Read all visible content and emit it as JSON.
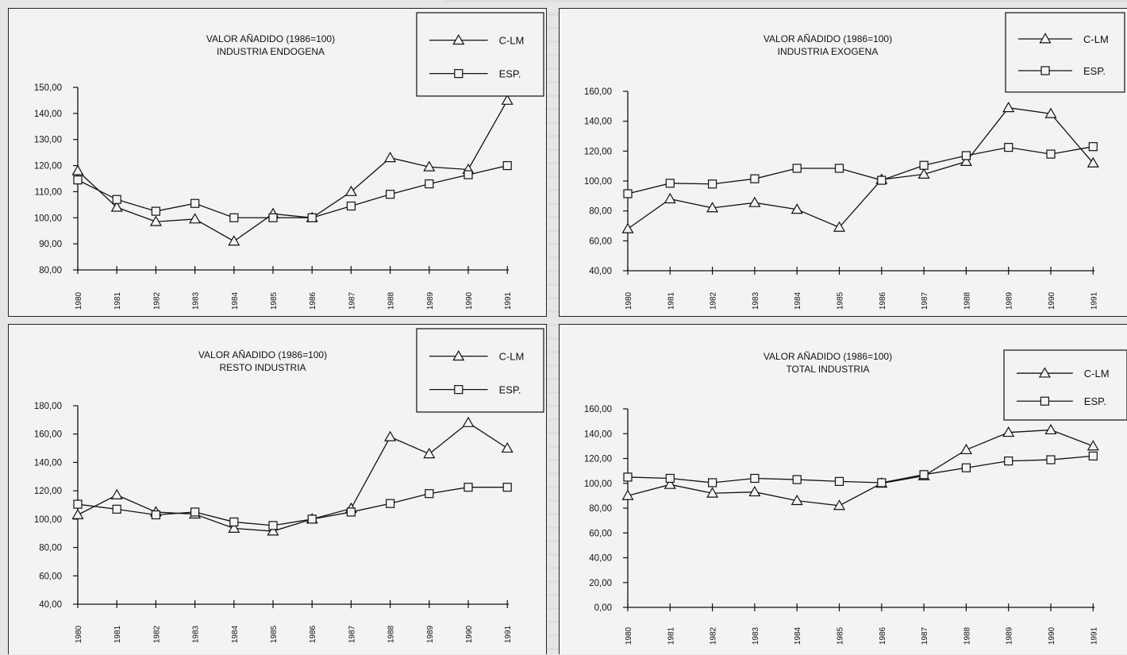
{
  "chart_data": [
    {
      "type": "line",
      "title": "VALOR AÑADIDO (1986=100)",
      "subtitle": "INDUSTRIA ENDOGENA",
      "categories": [
        "1980",
        "1981",
        "1982",
        "1983",
        "1984",
        "1985",
        "1986",
        "1987",
        "1988",
        "1989",
        "1990",
        "1991"
      ],
      "ylim": [
        80,
        150
      ],
      "yticks": [
        "80,00",
        "90,00",
        "100,00",
        "110,00",
        "120,00",
        "130,00",
        "140,00",
        "150,00"
      ],
      "legend_position": "top-right",
      "series": [
        {
          "name": "C-LM",
          "marker": "triangle",
          "values": [
            118,
            104,
            98.5,
            99.5,
            91,
            101.5,
            100,
            110,
            123,
            119.5,
            118.5,
            145
          ]
        },
        {
          "name": "ESP.",
          "marker": "square",
          "values": [
            114.5,
            107,
            102.5,
            105.5,
            100,
            100,
            100,
            104.5,
            109,
            113,
            116.5,
            120
          ]
        }
      ]
    },
    {
      "type": "line",
      "title": "VALOR AÑADIDO (1986=100)",
      "subtitle": "INDUSTRIA EXOGENA",
      "categories": [
        "1980",
        "1981",
        "1982",
        "1983",
        "1984",
        "1985",
        "1986",
        "1987",
        "1988",
        "1989",
        "1990",
        "1991"
      ],
      "ylim": [
        40,
        160
      ],
      "yticks": [
        "40,00",
        "60,00",
        "80,00",
        "100,00",
        "120,00",
        "140,00",
        "160,00"
      ],
      "legend_position": "top-right",
      "series": [
        {
          "name": "C-LM",
          "marker": "triangle",
          "values": [
            68,
            88,
            82,
            85.5,
            81,
            69,
            101,
            104.5,
            113,
            149,
            145,
            112
          ]
        },
        {
          "name": "ESP.",
          "marker": "square",
          "values": [
            91.5,
            98.5,
            98,
            101.5,
            108.5,
            108.5,
            100.5,
            110.5,
            117,
            122.5,
            118,
            123
          ]
        }
      ]
    },
    {
      "type": "line",
      "title": "VALOR AÑADIDO (1986=100)",
      "subtitle": "RESTO INDUSTRIA",
      "categories": [
        "1980",
        "1981",
        "1982",
        "1983",
        "1984",
        "1985",
        "1986",
        "1987",
        "1988",
        "1989",
        "1990",
        "1991"
      ],
      "ylim": [
        40,
        180
      ],
      "yticks": [
        "40,00",
        "60,00",
        "80,00",
        "100,00",
        "120,00",
        "140,00",
        "160,00",
        "180,00"
      ],
      "legend_position": "top-right",
      "series": [
        {
          "name": "C-LM",
          "marker": "triangle",
          "values": [
            103,
            117,
            105,
            103.5,
            93.5,
            91.5,
            100,
            107.5,
            158,
            146,
            168,
            150
          ]
        },
        {
          "name": "ESP.",
          "marker": "square",
          "values": [
            110.5,
            107,
            103,
            105,
            98,
            95.5,
            100,
            105,
            111,
            118,
            122.5,
            122.5
          ]
        }
      ]
    },
    {
      "type": "line",
      "title": "VALOR AÑADIDO (1986=100)",
      "subtitle": "TOTAL INDUSTRIA",
      "categories": [
        "1980",
        "1981",
        "1982",
        "1983",
        "1984",
        "1985",
        "1986",
        "1987",
        "1988",
        "1989",
        "1990",
        "1991"
      ],
      "ylim": [
        0,
        160
      ],
      "yticks": [
        "0,00",
        "20,00",
        "40,00",
        "60,00",
        "80,00",
        "100,00",
        "120,00",
        "140,00",
        "160,00"
      ],
      "legend_position": "top-right",
      "series": [
        {
          "name": "C-LM",
          "marker": "triangle",
          "values": [
            90,
            99,
            92,
            93,
            86,
            82,
            100,
            106,
            127,
            141,
            143,
            130
          ]
        },
        {
          "name": "ESP.",
          "marker": "square",
          "values": [
            105,
            104,
            100.5,
            104,
            103,
            101.5,
            100.5,
            107,
            112.5,
            118,
            119,
            122
          ]
        }
      ]
    }
  ]
}
